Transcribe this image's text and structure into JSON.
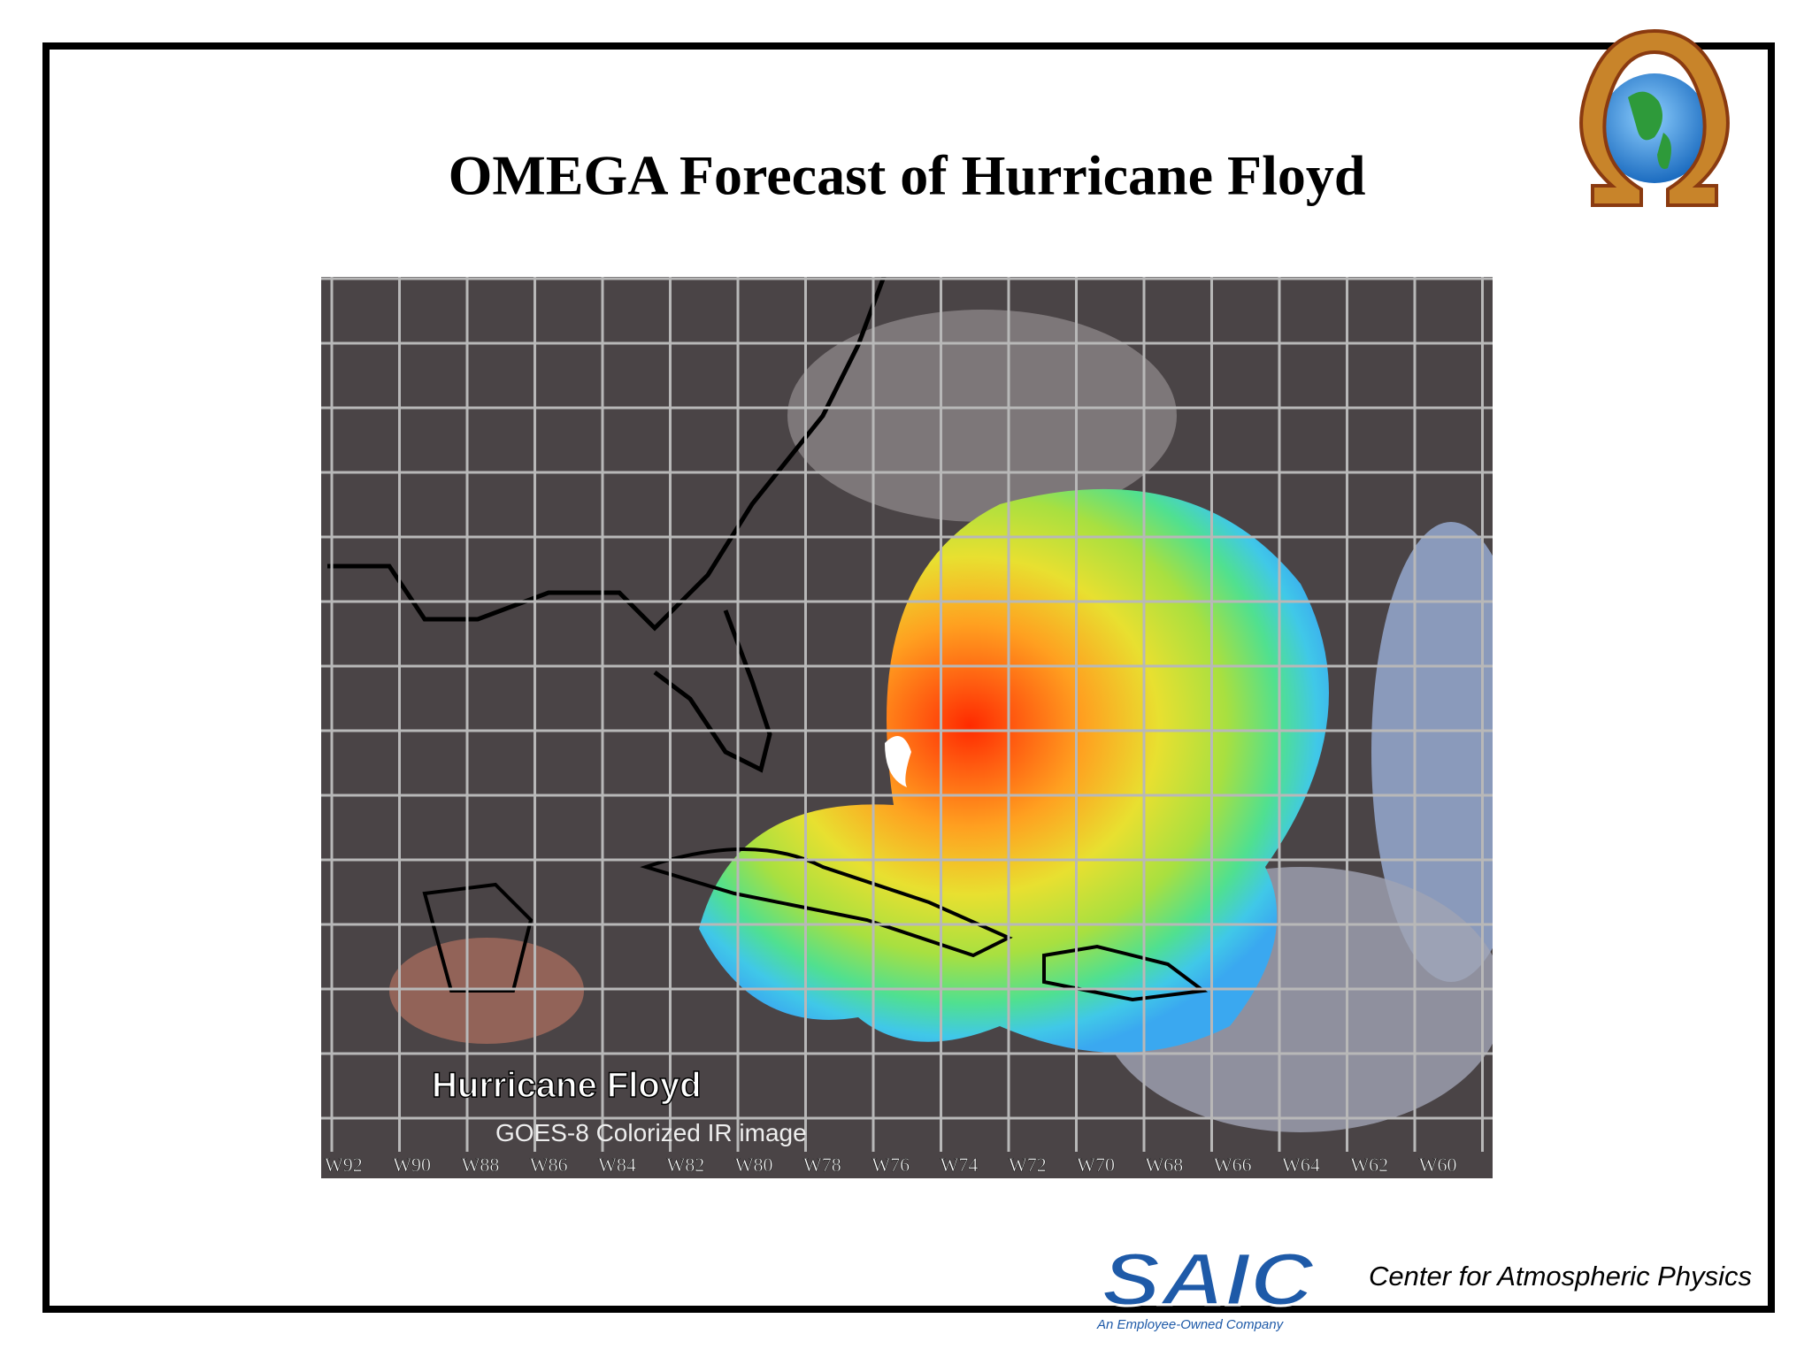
{
  "title": "OMEGA Forecast of Hurricane Floyd",
  "image": {
    "caption": "Hurricane Floyd",
    "subcaption": "GOES-8 Colorized IR image",
    "longitude_labels": [
      "W92",
      "W90",
      "W88",
      "W86",
      "W84",
      "W82",
      "W80",
      "W78",
      "W76",
      "W74",
      "W72",
      "W70",
      "W68",
      "W66",
      "W64",
      "W62",
      "W60"
    ]
  },
  "footer": {
    "logo_text": "SAIC",
    "logo_tagline": "An Employee-Owned Company",
    "organization": "Center for Atmospheric Physics"
  }
}
